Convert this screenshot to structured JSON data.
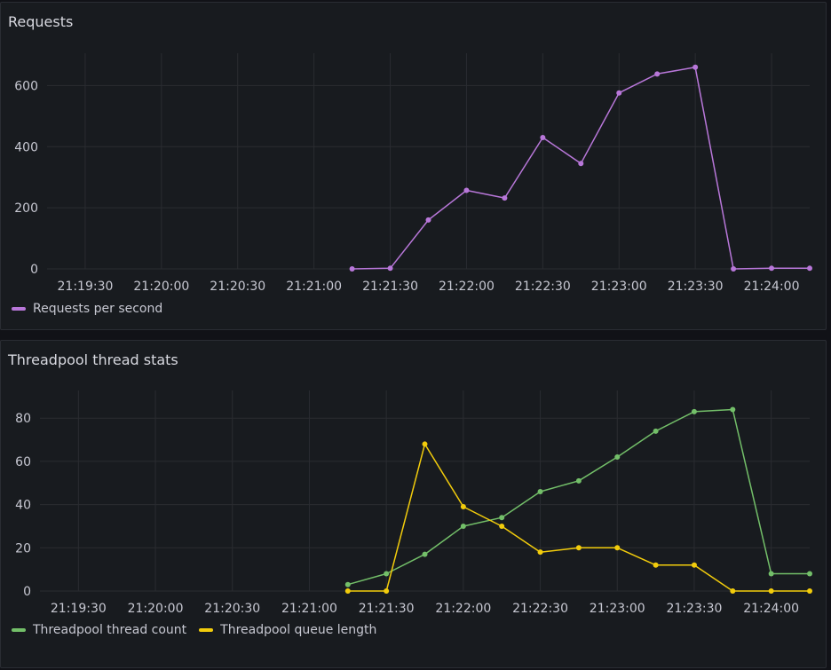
{
  "panels": [
    {
      "title": "Requests"
    },
    {
      "title": "Threadpool thread stats"
    }
  ],
  "chart_data": [
    {
      "type": "line",
      "title": "Requests",
      "xlabel": "",
      "ylabel": "",
      "x_ticks": [
        "21:19:30",
        "21:20:00",
        "21:20:30",
        "21:21:00",
        "21:21:30",
        "21:22:00",
        "21:22:30",
        "21:23:00",
        "21:23:30",
        "21:24:00"
      ],
      "y_ticks": [
        0,
        200,
        400,
        600
      ],
      "ylim": [
        0,
        700
      ],
      "grid": true,
      "legend_position": "bottom-left",
      "series": [
        {
          "name": "Requests per second",
          "color": "#b877d9",
          "points": [
            [
              "21:21:15",
              0
            ],
            [
              "21:21:30",
              2
            ],
            [
              "21:21:45",
              160
            ],
            [
              "21:22:00",
              257
            ],
            [
              "21:22:15",
              232
            ],
            [
              "21:22:30",
              430
            ],
            [
              "21:22:45",
              345
            ],
            [
              "21:23:00",
              576
            ],
            [
              "21:23:15",
              638
            ],
            [
              "21:23:30",
              660
            ],
            [
              "21:23:45",
              0
            ],
            [
              "21:24:00",
              2
            ],
            [
              "21:24:15",
              2
            ]
          ]
        }
      ]
    },
    {
      "type": "line",
      "title": "Threadpool thread stats",
      "xlabel": "",
      "ylabel": "",
      "x_ticks": [
        "21:19:30",
        "21:20:00",
        "21:20:30",
        "21:21:00",
        "21:21:30",
        "21:22:00",
        "21:22:30",
        "21:23:00",
        "21:23:30",
        "21:24:00"
      ],
      "y_ticks": [
        0,
        20,
        40,
        60,
        80
      ],
      "ylim": [
        0,
        92
      ],
      "grid": true,
      "legend_position": "bottom-left",
      "series": [
        {
          "name": "Threadpool thread count",
          "color": "#73bf69",
          "points": [
            [
              "21:21:15",
              3
            ],
            [
              "21:21:30",
              8
            ],
            [
              "21:21:45",
              17
            ],
            [
              "21:22:00",
              30
            ],
            [
              "21:22:15",
              34
            ],
            [
              "21:22:30",
              46
            ],
            [
              "21:22:45",
              51
            ],
            [
              "21:23:00",
              62
            ],
            [
              "21:23:15",
              74
            ],
            [
              "21:23:30",
              83
            ],
            [
              "21:23:45",
              84
            ],
            [
              "21:24:00",
              8
            ],
            [
              "21:24:15",
              8
            ]
          ]
        },
        {
          "name": "Threadpool queue length",
          "color": "#f2cc0c",
          "points": [
            [
              "21:21:15",
              0
            ],
            [
              "21:21:30",
              0
            ],
            [
              "21:21:45",
              68
            ],
            [
              "21:22:00",
              39
            ],
            [
              "21:22:15",
              30
            ],
            [
              "21:22:30",
              18
            ],
            [
              "21:22:45",
              20
            ],
            [
              "21:23:00",
              20
            ],
            [
              "21:23:15",
              12
            ],
            [
              "21:23:30",
              12
            ],
            [
              "21:23:45",
              0
            ],
            [
              "21:24:00",
              0
            ],
            [
              "21:24:15",
              0
            ]
          ]
        }
      ]
    }
  ]
}
